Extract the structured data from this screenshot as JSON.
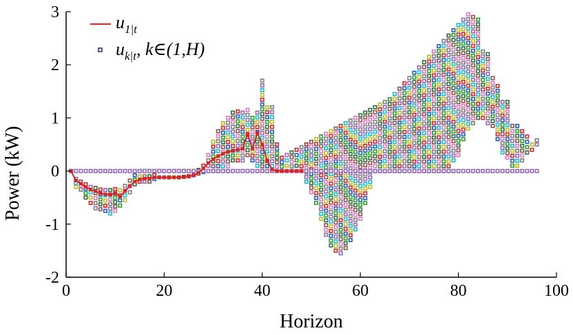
{
  "chart_data": {
    "type": "scatter",
    "title": "",
    "xlabel": "Horizon",
    "ylabel": "Power (kW)",
    "xlim": [
      0,
      100
    ],
    "ylim": [
      -2,
      3
    ],
    "xticks": [
      "0",
      "20",
      "40",
      "60",
      "80",
      "100"
    ],
    "yticks": [
      "-2",
      "-1",
      "0",
      "1",
      "2",
      "3"
    ],
    "grid": false,
    "legend_position": "top-left",
    "legend": [
      {
        "name": "u",
        "sub": "1|t",
        "tail": "",
        "kind": "line",
        "color": "#d62728"
      },
      {
        "name": "u",
        "sub": "k|t",
        "tail": ", k∈(1,H)",
        "kind": "marker",
        "color": "#3a4fa8"
      }
    ],
    "marker_palette": [
      "#2ca02c",
      "#1f5fbf",
      "#d62728",
      "#bcbd22",
      "#17becf",
      "#9467bd",
      "#7f7f7f",
      "#e377c2",
      "#8c564b",
      "#2f6f3f"
    ],
    "series": [
      {
        "name": "u_1|t",
        "kind": "line",
        "color": "#d62728",
        "x": [
          1,
          2,
          3,
          4,
          5,
          6,
          7,
          8,
          9,
          10,
          11,
          12,
          13,
          14,
          15,
          16,
          17,
          18,
          19,
          20,
          21,
          22,
          23,
          24,
          25,
          26,
          27,
          28,
          29,
          30,
          31,
          32,
          33,
          34,
          35,
          36,
          37,
          38,
          39,
          40,
          41,
          42,
          43,
          44,
          45,
          46,
          47,
          48
        ],
        "values": [
          0,
          -0.18,
          -0.24,
          -0.3,
          -0.35,
          -0.38,
          -0.42,
          -0.44,
          -0.44,
          -0.42,
          -0.48,
          -0.38,
          -0.28,
          -0.2,
          -0.16,
          -0.14,
          -0.14,
          -0.12,
          -0.12,
          -0.12,
          -0.12,
          -0.12,
          -0.12,
          -0.11,
          -0.1,
          -0.08,
          -0.03,
          0.05,
          0.15,
          0.22,
          0.28,
          0.33,
          0.36,
          0.38,
          0.4,
          0.42,
          0.7,
          0.42,
          0.72,
          0.5,
          0.2,
          0.03,
          0,
          0,
          0,
          0,
          0,
          0
        ]
      },
      {
        "name": "u_k|t",
        "kind": "scatter",
        "x": [
          1,
          2,
          3,
          4,
          5,
          6,
          7,
          8,
          9,
          10,
          11,
          12,
          13,
          14,
          15,
          16,
          17,
          18,
          19,
          20,
          21,
          22,
          23,
          24,
          25,
          26,
          27,
          28,
          29,
          30,
          31,
          32,
          33,
          34,
          35,
          36,
          37,
          38,
          39,
          40,
          41,
          42,
          43,
          44,
          45,
          46,
          47,
          48,
          49,
          50,
          51,
          52,
          53,
          54,
          55,
          56,
          57,
          58,
          59,
          60,
          61,
          62,
          63,
          64,
          65,
          66,
          67,
          68,
          69,
          70,
          71,
          72,
          73,
          74,
          75,
          76,
          77,
          78,
          79,
          80,
          81,
          82,
          83,
          84,
          85,
          86,
          87,
          88,
          89,
          90,
          91,
          92,
          93,
          94,
          95,
          96
        ],
        "upper": [
          0,
          -0.15,
          -0.2,
          -0.25,
          -0.3,
          -0.32,
          -0.35,
          -0.36,
          -0.36,
          -0.34,
          -0.36,
          -0.28,
          -0.18,
          -0.08,
          0,
          0,
          0,
          0,
          0,
          0,
          0,
          0,
          0,
          0,
          0,
          0,
          0.02,
          0.1,
          0.3,
          0.55,
          0.75,
          0.9,
          1.0,
          1.1,
          1.12,
          1.1,
          1.15,
          1.0,
          1.1,
          1.7,
          1.2,
          1.2,
          0.5,
          0.25,
          0.3,
          0.35,
          0.4,
          0.45,
          0.5,
          0.55,
          0.6,
          0.65,
          0.7,
          0.75,
          0.8,
          0.85,
          0.9,
          0.95,
          1.0,
          1.05,
          1.1,
          1.15,
          1.2,
          1.25,
          1.3,
          1.35,
          1.45,
          1.55,
          1.65,
          1.75,
          1.85,
          1.95,
          2.05,
          2.15,
          2.25,
          2.35,
          2.45,
          2.55,
          2.65,
          2.75,
          2.85,
          2.95,
          2.9,
          2.85,
          2.25,
          2.2,
          1.75,
          1.6,
          1.3,
          1.3,
          0.85,
          0.85,
          0.75,
          0.65,
          0.5,
          0.58
        ],
        "lower": [
          0,
          -0.3,
          -0.35,
          -0.5,
          -0.6,
          -0.7,
          -0.72,
          -0.75,
          -0.8,
          -0.75,
          -0.65,
          -0.55,
          -0.4,
          -0.25,
          -0.2,
          -0.2,
          -0.2,
          -0.15,
          -0.12,
          -0.12,
          -0.12,
          -0.12,
          -0.12,
          -0.11,
          -0.1,
          -0.08,
          -0.05,
          -0.02,
          0,
          0,
          0,
          0,
          0,
          0.2,
          0.2,
          0.2,
          0.3,
          0.2,
          0.1,
          0,
          0,
          0,
          0,
          0,
          0,
          0,
          0,
          0,
          -0.2,
          -0.4,
          -0.6,
          -0.9,
          -1.2,
          -1.4,
          -1.5,
          -1.55,
          -1.45,
          -1.3,
          -1.1,
          -0.9,
          -0.6,
          -0.3,
          0,
          0,
          0,
          0,
          0,
          0,
          0,
          0,
          0,
          0,
          0,
          0,
          0,
          0,
          0,
          0,
          0.2,
          0.3,
          0.6,
          0.8,
          0.9,
          1.0,
          1.0,
          0.9,
          0.85,
          0.6,
          0.35,
          0.25,
          0.1,
          0.1,
          0.2,
          0.35,
          0.4,
          0.5
        ],
        "baseline": 0
      }
    ]
  }
}
